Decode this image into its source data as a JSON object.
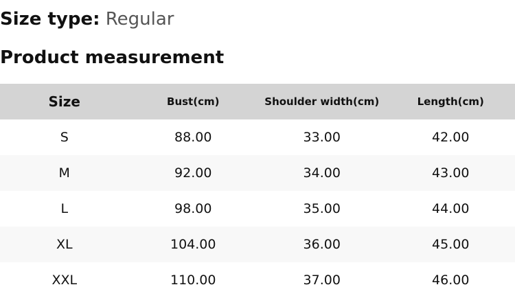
{
  "size_type": {
    "label": "Size type:",
    "value": "Regular"
  },
  "section_title": "Product measurement",
  "table": {
    "headers": [
      "Size",
      "Bust(cm)",
      "Shoulder width(cm)",
      "Length(cm)"
    ],
    "rows": [
      [
        "S",
        "88.00",
        "33.00",
        "42.00"
      ],
      [
        "M",
        "92.00",
        "34.00",
        "43.00"
      ],
      [
        "L",
        "98.00",
        "35.00",
        "44.00"
      ],
      [
        "XL",
        "104.00",
        "36.00",
        "45.00"
      ],
      [
        "XXL",
        "110.00",
        "37.00",
        "46.00"
      ]
    ]
  }
}
